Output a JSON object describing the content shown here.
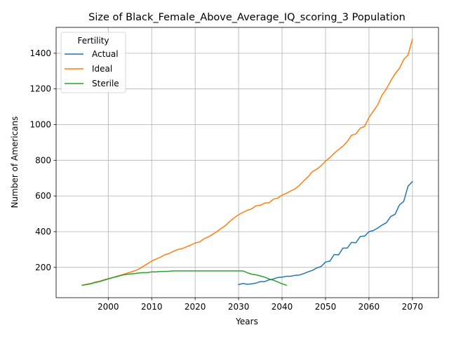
{
  "chart_data": {
    "type": "line",
    "title": "Size of Black_Female_Above_Average_IQ_scoring_3 Population",
    "xlabel": "Years",
    "ylabel": "Number of Americans",
    "xlim": [
      1988,
      2076
    ],
    "ylim": [
      30,
      1545
    ],
    "xticks": [
      2000,
      2010,
      2020,
      2030,
      2040,
      2050,
      2060,
      2070
    ],
    "yticks": [
      200,
      400,
      600,
      800,
      1000,
      1200,
      1400
    ],
    "grid": true,
    "legend": {
      "title": "Fertility",
      "position": "top-left"
    },
    "series": [
      {
        "name": "Actual",
        "color": "#1f77b4",
        "x": [
          2030,
          2031,
          2032,
          2033,
          2034,
          2035,
          2036,
          2037,
          2038,
          2039,
          2040,
          2041,
          2042,
          2043,
          2044,
          2045,
          2046,
          2047,
          2048,
          2049,
          2050,
          2051,
          2052,
          2053,
          2054,
          2055,
          2056,
          2057,
          2058,
          2059,
          2060,
          2061,
          2062,
          2063,
          2064,
          2065,
          2066,
          2067,
          2068,
          2069,
          2070
        ],
        "y": [
          103,
          110,
          105,
          108,
          112,
          120,
          120,
          130,
          135,
          143,
          145,
          150,
          150,
          155,
          157,
          165,
          175,
          183,
          197,
          205,
          230,
          235,
          272,
          270,
          308,
          308,
          340,
          338,
          373,
          375,
          400,
          406,
          420,
          437,
          450,
          485,
          497,
          550,
          570,
          655,
          680
        ]
      },
      {
        "name": "Ideal",
        "color": "#ff7f0e",
        "x": [
          1994,
          1995,
          1996,
          1997,
          1998,
          1999,
          2000,
          2001,
          2002,
          2003,
          2004,
          2005,
          2006,
          2007,
          2008,
          2009,
          2010,
          2011,
          2012,
          2013,
          2014,
          2015,
          2016,
          2017,
          2018,
          2019,
          2020,
          2021,
          2022,
          2023,
          2024,
          2025,
          2026,
          2027,
          2028,
          2029,
          2030,
          2031,
          2032,
          2033,
          2034,
          2035,
          2036,
          2037,
          2038,
          2039,
          2040,
          2041,
          2042,
          2043,
          2044,
          2045,
          2046,
          2047,
          2048,
          2049,
          2050,
          2051,
          2052,
          2053,
          2054,
          2055,
          2056,
          2057,
          2058,
          2059,
          2060,
          2061,
          2062,
          2063,
          2064,
          2065,
          2066,
          2067,
          2068,
          2069,
          2070
        ],
        "y": [
          100,
          105,
          110,
          117,
          122,
          130,
          137,
          143,
          150,
          157,
          165,
          172,
          180,
          190,
          205,
          220,
          235,
          247,
          257,
          270,
          278,
          290,
          300,
          305,
          315,
          325,
          337,
          342,
          360,
          370,
          385,
          400,
          418,
          435,
          458,
          478,
          495,
          508,
          520,
          528,
          545,
          548,
          560,
          562,
          582,
          588,
          605,
          615,
          628,
          640,
          660,
          685,
          708,
          737,
          750,
          770,
          795,
          815,
          840,
          860,
          880,
          905,
          940,
          948,
          980,
          990,
          1040,
          1075,
          1110,
          1165,
          1200,
          1245,
          1285,
          1315,
          1365,
          1390,
          1478
        ]
      },
      {
        "name": "Sterile",
        "color": "#2ca02c",
        "x": [
          1994,
          1995,
          1996,
          1997,
          1998,
          1999,
          2000,
          2001,
          2002,
          2003,
          2004,
          2005,
          2006,
          2007,
          2008,
          2009,
          2010,
          2011,
          2012,
          2013,
          2014,
          2015,
          2016,
          2017,
          2018,
          2019,
          2020,
          2021,
          2022,
          2023,
          2024,
          2025,
          2026,
          2027,
          2028,
          2029,
          2030,
          2031,
          2032,
          2033,
          2034,
          2035,
          2036,
          2037,
          2038,
          2039,
          2040,
          2041
        ],
        "y": [
          100,
          103,
          108,
          115,
          120,
          128,
          135,
          142,
          148,
          155,
          160,
          163,
          165,
          168,
          170,
          170,
          175,
          175,
          177,
          177,
          178,
          180,
          180,
          180,
          180,
          180,
          180,
          180,
          180,
          180,
          180,
          180,
          180,
          180,
          180,
          180,
          180,
          180,
          170,
          162,
          158,
          152,
          145,
          135,
          128,
          118,
          108,
          100
        ]
      }
    ]
  }
}
